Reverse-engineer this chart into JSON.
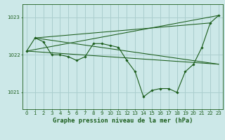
{
  "title": "Graphe pression niveau de la mer (hPa)",
  "background_color": "#cce8e8",
  "grid_color": "#aacece",
  "line_color": "#1a5c1a",
  "xlim": [
    -0.5,
    23.5
  ],
  "ylim": [
    1020.55,
    1023.35
  ],
  "yticks": [
    1021,
    1022,
    1023
  ],
  "xticks": [
    0,
    1,
    2,
    3,
    4,
    5,
    6,
    7,
    8,
    9,
    10,
    11,
    12,
    13,
    14,
    15,
    16,
    17,
    18,
    19,
    20,
    21,
    22,
    23
  ],
  "series_main": {
    "x": [
      0,
      1,
      2,
      3,
      4,
      5,
      6,
      7,
      8,
      9,
      10,
      11,
      12,
      13,
      14,
      15,
      16,
      17,
      18,
      19,
      20,
      21,
      22,
      23
    ],
    "y": [
      1022.1,
      1022.45,
      1022.35,
      1022.0,
      1022.0,
      1021.95,
      1021.85,
      1021.95,
      1022.3,
      1022.3,
      1022.25,
      1022.2,
      1021.85,
      1021.55,
      1020.88,
      1021.05,
      1021.1,
      1021.1,
      1021.0,
      1021.55,
      1021.75,
      1022.2,
      1022.85,
      1023.05
    ]
  },
  "series_extra": [
    {
      "x": [
        0,
        23
      ],
      "y": [
        1022.1,
        1023.05
      ]
    },
    {
      "x": [
        0,
        23
      ],
      "y": [
        1022.1,
        1021.75
      ]
    },
    {
      "x": [
        1,
        23
      ],
      "y": [
        1022.45,
        1021.75
      ]
    },
    {
      "x": [
        1,
        22
      ],
      "y": [
        1022.45,
        1022.85
      ]
    }
  ],
  "tick_fontsize": 5.0,
  "xlabel_fontsize": 6.2,
  "fig_width": 3.2,
  "fig_height": 2.0,
  "dpi": 100
}
